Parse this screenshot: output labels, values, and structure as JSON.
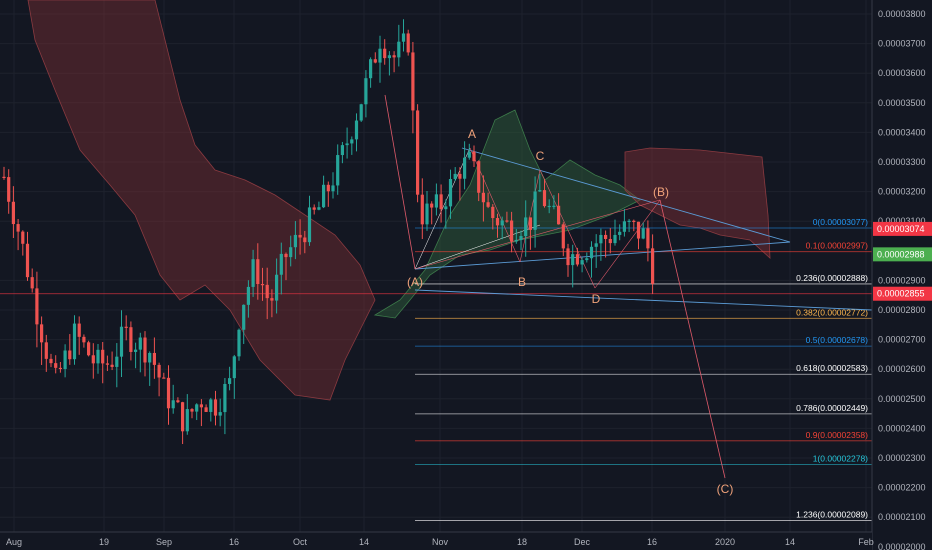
{
  "chart_data": {
    "type": "candlestick",
    "x_ticks": [
      "Aug",
      "19",
      "Sep",
      "16",
      "Oct",
      "14",
      "Nov",
      "18",
      "Dec",
      "16",
      "2020",
      "14",
      "Feb"
    ],
    "y_range": [
      2e-05,
      3.8e-05
    ],
    "y_ticks": [
      {
        "value": 3.8e-05,
        "label": "0.00003800"
      },
      {
        "value": 3.7e-05,
        "label": "0.00003700"
      },
      {
        "value": 3.6e-05,
        "label": "0.00003600"
      },
      {
        "value": 3.5e-05,
        "label": "0.00003500"
      },
      {
        "value": 3.4e-05,
        "label": "0.00003400"
      },
      {
        "value": 3.3e-05,
        "label": "0.00003300"
      },
      {
        "value": 3.2e-05,
        "label": "0.00003200"
      },
      {
        "value": 3.1e-05,
        "label": "0.00003100"
      },
      {
        "value": 2.9e-05,
        "label": "0.00002900"
      },
      {
        "value": 2.8e-05,
        "label": "0.00002800"
      },
      {
        "value": 2.7e-05,
        "label": "0.00002700"
      },
      {
        "value": 2.6e-05,
        "label": "0.00002600"
      },
      {
        "value": 2.5e-05,
        "label": "0.00002500"
      },
      {
        "value": 2.4e-05,
        "label": "0.00002400"
      },
      {
        "value": 2.3e-05,
        "label": "0.00002300"
      },
      {
        "value": 2.2e-05,
        "label": "0.00002200"
      },
      {
        "value": 2.1e-05,
        "label": "0.00002100"
      },
      {
        "value": 2e-05,
        "label": "0.00002000"
      }
    ],
    "price_tags": [
      {
        "value": 3.074e-05,
        "label": "0.00003074",
        "color": "#f23645"
      },
      {
        "value": 2.988e-05,
        "label": "0.00002988",
        "color": "#4caf50"
      },
      {
        "value": 2.855e-05,
        "label": "0.00002855",
        "color": "#f23645"
      }
    ],
    "fib_levels": [
      {
        "ratio": "0",
        "value": 3.077e-05,
        "label": "0(0.00003077)",
        "color": "#2196f3"
      },
      {
        "ratio": "0.1",
        "value": 2.997e-05,
        "label": "0.1(0.00002997)",
        "color": "#f44336"
      },
      {
        "ratio": "0.236",
        "value": 2.888e-05,
        "label": "0.236(0.00002888)",
        "color": "#ffffff"
      },
      {
        "ratio": "0.382",
        "value": 2.772e-05,
        "label": "0.382(0.00002772)",
        "color": "#ffb74d"
      },
      {
        "ratio": "0.5",
        "value": 2.678e-05,
        "label": "0.5(0.00002678)",
        "color": "#2196f3"
      },
      {
        "ratio": "0.618",
        "value": 2.583e-05,
        "label": "0.618(0.00002583)",
        "color": "#ffffff"
      },
      {
        "ratio": "0.786",
        "value": 2.449e-05,
        "label": "0.786(0.00002449)",
        "color": "#ffffff"
      },
      {
        "ratio": "0.9",
        "value": 2.358e-05,
        "label": "0.9(0.00002358)",
        "color": "#f44336"
      },
      {
        "ratio": "1",
        "value": 2.278e-05,
        "label": "1(0.00002278)",
        "color": "#26c6da"
      },
      {
        "ratio": "1.236",
        "value": 2.089e-05,
        "label": "1.236(0.00002089)",
        "color": "#ffffff"
      }
    ],
    "wave_labels": [
      "A",
      "C",
      "(B)",
      "(A)",
      "B",
      "D",
      "(C)"
    ],
    "colors": {
      "up": "#26a69a",
      "down": "#ef5350",
      "background": "#131722",
      "grid": "#1e222d",
      "cloud_bear": "#7a2e34",
      "cloud_bull": "#2e5b3a"
    }
  }
}
